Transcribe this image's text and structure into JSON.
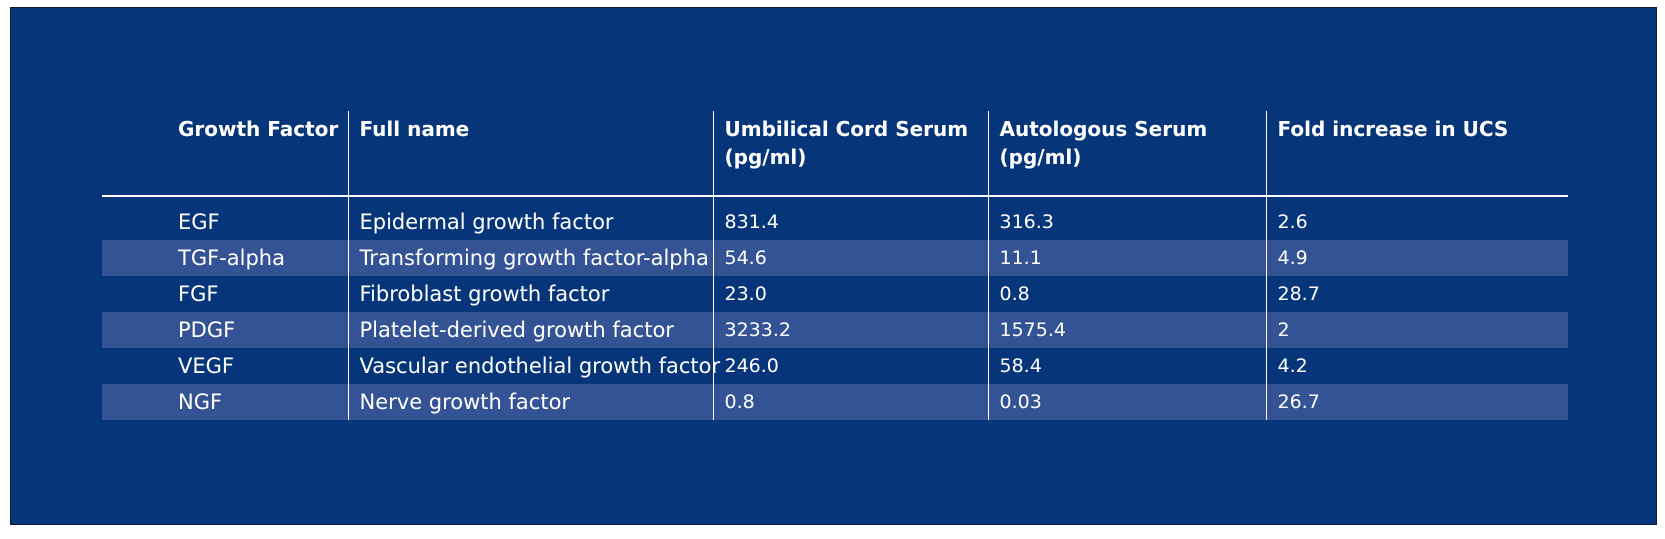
{
  "table": {
    "headers": [
      [
        "Growth Factor"
      ],
      [
        "Full name"
      ],
      [
        "Umbilical Cord Serum",
        "(pg/ml)"
      ],
      [
        "Autologous Serum",
        "(pg/ml)"
      ],
      [
        "Fold increase in UCS"
      ]
    ],
    "rows": [
      {
        "factor": "EGF",
        "full_name": "Epidermal growth factor",
        "ucs": "831.4",
        "as": "316.3",
        "fold": "2.6"
      },
      {
        "factor": "TGF-alpha",
        "full_name": "Transforming growth factor-alpha",
        "ucs": "54.6",
        "as": "11.1",
        "fold": "4.9"
      },
      {
        "factor": "FGF",
        "full_name": "Fibroblast growth factor",
        "ucs": "23.0",
        "as": "0.8",
        "fold": "28.7"
      },
      {
        "factor": "PDGF",
        "full_name": "Platelet-derived growth factor",
        "ucs": "3233.2",
        "as": "1575.4",
        "fold": "2"
      },
      {
        "factor": "VEGF",
        "full_name": "Vascular endothelial growth factor",
        "ucs": "246.0",
        "as": "58.4",
        "fold": "4.2"
      },
      {
        "factor": "NGF",
        "full_name": "Nerve growth factor",
        "ucs": "0.8",
        "as": "0.03",
        "fold": "26.7"
      }
    ]
  },
  "colors": {
    "background": "#07357a",
    "shaded_row": "#345394",
    "text": "#ffffff"
  }
}
